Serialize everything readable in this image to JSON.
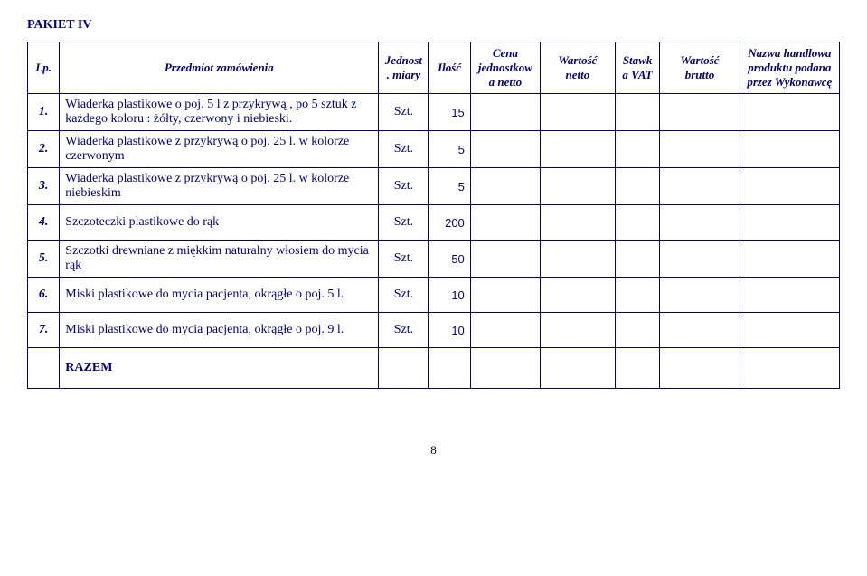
{
  "title": "PAKIET IV",
  "headers": {
    "lp": "Lp.",
    "przedmiot": "Przedmiot zamówienia",
    "jm": "Jednost. miary",
    "ilosc": "Ilość",
    "cena": "Cena jednostkowa netto",
    "wn": "Wartość netto",
    "stawka": "Stawka VAT",
    "wb": "Wartość brutto",
    "nazwa": "Nazwa handlowa produktu podana przez Wykonawcę"
  },
  "rows": [
    {
      "lp": "1.",
      "przedmiot": "Wiaderka plastikowe o poj. 5 l z przykrywą , po 5 sztuk z każdego koloru : żółty, czerwony i niebieski.",
      "jm": "Szt.",
      "ilosc": "15"
    },
    {
      "lp": "2.",
      "przedmiot": "Wiaderka plastikowe z przykrywą o poj. 25 l. w kolorze czerwonym",
      "jm": "Szt.",
      "ilosc": "5"
    },
    {
      "lp": "3.",
      "przedmiot": "Wiaderka plastikowe z przykrywą o poj. 25 l. w kolorze niebieskim",
      "jm": "Szt.",
      "ilosc": "5"
    },
    {
      "lp": "4.",
      "przedmiot": "Szczoteczki plastikowe do rąk",
      "jm": "Szt.",
      "ilosc": "200"
    },
    {
      "lp": "5.",
      "przedmiot": "Szczotki drewniane z miękkim naturalny włosiem do mycia rąk",
      "jm": "Szt.",
      "ilosc": "50"
    },
    {
      "lp": "6.",
      "przedmiot": "Miski plastikowe do mycia pacjenta, okrągłe o poj. 5 l.",
      "jm": "Szt.",
      "ilosc": "10"
    },
    {
      "lp": "7.",
      "przedmiot": "Miski plastikowe do mycia pacjenta, okrągłe o poj. 9 l.",
      "jm": "Szt.",
      "ilosc": "10"
    }
  ],
  "razem": "RAZEM",
  "page": "8"
}
